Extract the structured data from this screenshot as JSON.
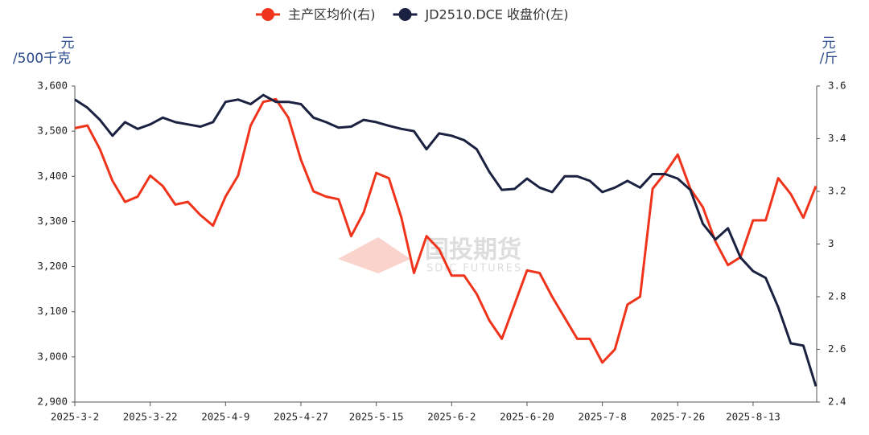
{
  "chart_data": {
    "type": "line",
    "y_label": [
      "元",
      "/500千克"
    ],
    "y2_label": [
      "元",
      "/斤"
    ],
    "watermark": [
      "国投期货",
      "SDIC FUTURES"
    ],
    "categories": [
      "2025-3-2",
      null,
      null,
      null,
      null,
      null,
      "2025-3-22",
      null,
      null,
      null,
      null,
      null,
      "2025-4-9",
      null,
      null,
      null,
      null,
      null,
      "2025-4-27",
      null,
      null,
      null,
      null,
      null,
      "2025-5-15",
      null,
      null,
      null,
      null,
      null,
      "2025-6-2",
      null,
      null,
      null,
      null,
      null,
      "2025-6-20",
      null,
      null,
      null,
      null,
      null,
      "2025-7-8",
      null,
      null,
      null,
      null,
      null,
      "2025-7-26",
      null,
      null,
      null,
      null,
      null,
      "2025-8-13",
      null,
      null,
      null,
      null,
      null
    ],
    "series": [
      {
        "name": "主产区均价(右)",
        "color": "#f0341c",
        "axis": "y2",
        "values": [
          3.44,
          3.45,
          3.36,
          3.24,
          3.16,
          3.18,
          3.26,
          3.22,
          3.15,
          3.16,
          3.11,
          3.07,
          3.18,
          3.26,
          3.45,
          3.54,
          3.55,
          3.48,
          3.32,
          3.2,
          3.18,
          3.17,
          3.03,
          3.12,
          3.27,
          3.25,
          3.1,
          2.89,
          3.03,
          2.98,
          2.88,
          2.88,
          2.81,
          2.71,
          2.64,
          2.77,
          2.9,
          2.89,
          2.8,
          2.72,
          2.64,
          2.64,
          2.55,
          2.6,
          2.77,
          2.8,
          3.21,
          3.27,
          3.34,
          3.21,
          3.14,
          3.01,
          2.92,
          2.95,
          3.09,
          3.09,
          3.25,
          3.19,
          3.1,
          3.22
        ]
      },
      {
        "name": "JD2510.DCE 收盘价(左)",
        "color": "#1b2140",
        "values": [
          3570,
          3552,
          3525,
          3490,
          3520,
          3505,
          3515,
          3530,
          3520,
          3515,
          3510,
          3520,
          3565,
          3570,
          3560,
          3580,
          3565,
          3565,
          3560,
          3530,
          3520,
          3508,
          3510,
          3525,
          3520,
          3512,
          3505,
          3500,
          3460,
          3495,
          3490,
          3480,
          3460,
          3410,
          3370,
          3372,
          3395,
          3375,
          3365,
          3400,
          3400,
          3390,
          3365,
          3375,
          3390,
          3375,
          3405,
          3405,
          3395,
          3370,
          3295,
          3260,
          3285,
          3220,
          3190,
          3175,
          3110,
          3030,
          3025,
          2935
        ]
      }
    ],
    "ylim": [
      2900,
      3600
    ],
    "yticks": [
      {
        "value": 2900,
        "label": "2,900"
      },
      {
        "value": 3000,
        "label": "3,000"
      },
      {
        "value": 3100,
        "label": "3,100"
      },
      {
        "value": 3200,
        "label": "3,200"
      },
      {
        "value": 3300,
        "label": "3,300"
      },
      {
        "value": 3400,
        "label": "3,400"
      },
      {
        "value": 3500,
        "label": "3,500"
      },
      {
        "value": 3600,
        "label": "3,600"
      }
    ],
    "y2lim": [
      2.4,
      3.6
    ],
    "y2ticks": [
      2.4,
      2.6,
      2.8,
      3,
      3.2,
      3.4,
      3.6
    ],
    "grid": false
  }
}
